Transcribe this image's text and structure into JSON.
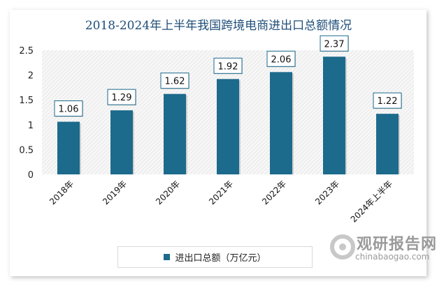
{
  "chart_data": {
    "type": "bar",
    "title": "2018-2024年上半年我国跨境电商进出口总额情况",
    "categories": [
      "2018年",
      "2019年",
      "2020年",
      "2021年",
      "2022年",
      "2023年",
      "2024年上半年"
    ],
    "series": [
      {
        "name": "进出口总额（万亿元）",
        "values": [
          1.06,
          1.29,
          1.62,
          1.92,
          2.06,
          2.37,
          1.22
        ]
      }
    ],
    "ylim": [
      0,
      2.5
    ],
    "yticks": [
      "0",
      "0.5",
      "1",
      "1.5",
      "2",
      "2.5"
    ],
    "xlabel": "",
    "ylabel": "",
    "grid": false,
    "legend": "bottom",
    "colors": {
      "bar": "#1c6a8c",
      "title": "#1f4e79"
    }
  },
  "watermark": {
    "name": "观研报告网",
    "url": "chinabaogao.com"
  }
}
